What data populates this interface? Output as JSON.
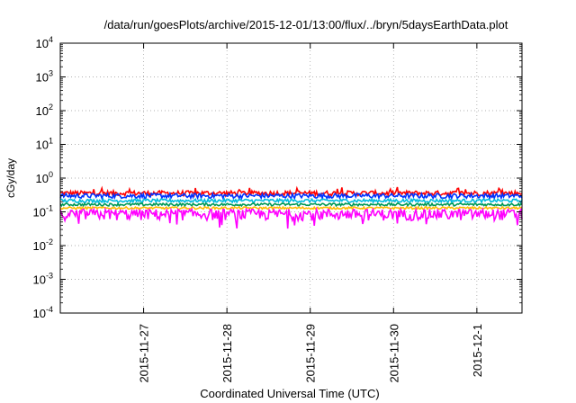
{
  "chart_data": {
    "type": "line",
    "title": "/data/run/goesPlots/archive/2015-12-01/13:00/flux/../bryn/5daysEarthData.plot",
    "xlabel": "Coordinated Universal Time (UTC)",
    "ylabel": "cGy/day",
    "yscale": "log",
    "ylim": [
      0.0001,
      10000
    ],
    "xlim": [
      "2015-11-26 00:00",
      "2015-12-01 13:00"
    ],
    "y_ticks": [
      {
        "base": "10",
        "exp": "4"
      },
      {
        "base": "10",
        "exp": "3"
      },
      {
        "base": "10",
        "exp": "2"
      },
      {
        "base": "10",
        "exp": "1"
      },
      {
        "base": "10",
        "exp": "0"
      },
      {
        "base": "10",
        "exp": "-1"
      },
      {
        "base": "10",
        "exp": "-2"
      },
      {
        "base": "10",
        "exp": "-3"
      },
      {
        "base": "10",
        "exp": "-4"
      }
    ],
    "x_ticks": [
      "2015-11-27",
      "2015-11-28",
      "2015-11-29",
      "2015-11-30",
      "2015-12-1"
    ],
    "grid": true,
    "series": [
      {
        "color": "#ff0000",
        "values": [
          0.3,
          0.42
        ],
        "note_range": "approx baseline 0.28-0.42 cGy/day"
      },
      {
        "color": "#0033ff",
        "values": [
          0.25,
          0.35
        ]
      },
      {
        "color": "#00bbdd",
        "values": [
          0.19,
          0.24
        ]
      },
      {
        "color": "#009955",
        "values": [
          0.15,
          0.18
        ]
      },
      {
        "color": "#ffbb00",
        "values": [
          0.12,
          0.14
        ]
      },
      {
        "color": "#ff00ff",
        "values": [
          0.055,
          0.12
        ]
      }
    ]
  }
}
